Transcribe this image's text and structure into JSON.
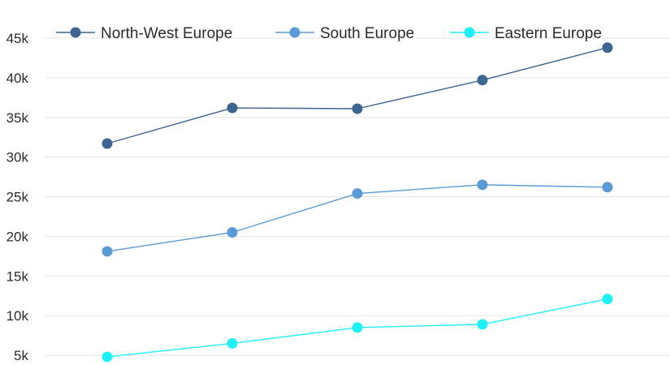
{
  "chart_data": {
    "type": "line",
    "title": "",
    "xlabel": "",
    "ylabel": "",
    "x": [
      1,
      2,
      3,
      4,
      5
    ],
    "ylim": [
      5000,
      45000
    ],
    "yticks": [
      5000,
      10000,
      15000,
      20000,
      25000,
      30000,
      35000,
      40000,
      45000
    ],
    "ytick_labels": [
      "5k",
      "10k",
      "15k",
      "20k",
      "25k",
      "30k",
      "35k",
      "40k",
      "45k"
    ],
    "grid": true,
    "legend_position": "top",
    "series": [
      {
        "name": "North-West Europe",
        "color": "#3d6591",
        "values": [
          31700,
          36200,
          36100,
          39700,
          43800
        ]
      },
      {
        "name": "South Europe",
        "color": "#5b9bd5",
        "values": [
          18100,
          20500,
          25400,
          26500,
          26200
        ]
      },
      {
        "name": "Eastern Europe",
        "color": "#1ef0f8",
        "values": [
          4800,
          6500,
          8500,
          8900,
          12100
        ]
      }
    ]
  }
}
